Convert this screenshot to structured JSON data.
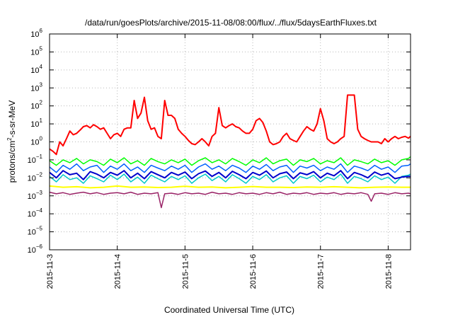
{
  "chart_data": {
    "type": "line",
    "title": "/data/run/goesPlots/archive/2015-11-08/08:00/flux/../flux/5daysEarthFluxes.txt",
    "xlabel": "Coordinated Universal Time (UTC)",
    "ylabel": "protons/cm²-s-sr-MeV",
    "ylabel_parts": {
      "before": "protons/cm",
      "sup": "2",
      "after": "-s-sr-MeV"
    },
    "yscale": "log",
    "ylim_exp": [
      -6,
      6
    ],
    "yticks_exp": [
      -6,
      -5,
      -4,
      -3,
      -2,
      -1,
      0,
      1,
      2,
      3,
      4,
      5,
      6
    ],
    "xlim": [
      0,
      5.33
    ],
    "xticks": [
      {
        "x": 0,
        "label": "2015-11-3"
      },
      {
        "x": 1,
        "label": "2015-11-4"
      },
      {
        "x": 2,
        "label": "2015-11-5"
      },
      {
        "x": 3,
        "label": "2015-11-6"
      },
      {
        "x": 4,
        "label": "2015-11-7"
      },
      {
        "x": 5,
        "label": "2015-11-8"
      }
    ],
    "grid": true,
    "series": [
      {
        "color": "#ff0000",
        "width": 2.0,
        "x": [
          0,
          0.05,
          0.1,
          0.15,
          0.2,
          0.25,
          0.3,
          0.35,
          0.4,
          0.45,
          0.5,
          0.55,
          0.6,
          0.65,
          0.7,
          0.75,
          0.8,
          0.85,
          0.9,
          0.95,
          1.0,
          1.05,
          1.1,
          1.15,
          1.2,
          1.25,
          1.3,
          1.35,
          1.4,
          1.45,
          1.5,
          1.55,
          1.6,
          1.65,
          1.7,
          1.75,
          1.8,
          1.85,
          1.9,
          1.95,
          2.0,
          2.05,
          2.1,
          2.15,
          2.2,
          2.25,
          2.3,
          2.35,
          2.4,
          2.45,
          2.5,
          2.55,
          2.6,
          2.65,
          2.7,
          2.75,
          2.8,
          2.85,
          2.9,
          2.95,
          3.0,
          3.05,
          3.1,
          3.15,
          3.2,
          3.25,
          3.3,
          3.35,
          3.4,
          3.45,
          3.5,
          3.55,
          3.6,
          3.65,
          3.7,
          3.75,
          3.8,
          3.85,
          3.9,
          3.95,
          4.0,
          4.05,
          4.1,
          4.15,
          4.2,
          4.25,
          4.3,
          4.35,
          4.4,
          4.45,
          4.5,
          4.55,
          4.6,
          4.65,
          4.7,
          4.75,
          4.8,
          4.85,
          4.9,
          4.95,
          5.0,
          5.05,
          5.1,
          5.15,
          5.2,
          5.25,
          5.3,
          5.33
        ],
        "y": [
          0.4,
          0.3,
          0.2,
          1.0,
          0.6,
          1.5,
          4.0,
          2.5,
          3.0,
          4.5,
          7.0,
          8.0,
          6.0,
          9.0,
          7.0,
          5.0,
          6.0,
          3.0,
          1.5,
          2.5,
          3.0,
          2.0,
          5.0,
          6.0,
          6.0,
          200,
          20,
          40,
          300,
          15,
          5,
          6,
          2,
          1.5,
          200,
          30,
          30,
          20,
          5,
          3,
          2,
          1.2,
          0.8,
          0.7,
          1.0,
          1.5,
          1.0,
          0.6,
          2.0,
          3.0,
          80,
          8,
          6,
          8,
          10,
          7,
          6,
          4,
          3,
          3.0,
          5,
          15,
          20,
          12,
          4,
          1.0,
          0.7,
          0.8,
          1.0,
          2.0,
          3.0,
          1.5,
          1.2,
          1.0,
          2.0,
          4.0,
          7.0,
          5.0,
          4.0,
          10,
          70,
          15,
          1.5,
          1.0,
          0.8,
          1.0,
          1.5,
          2.0,
          400,
          400,
          400,
          5,
          2,
          1.5,
          1.2,
          1.0,
          1.0,
          1.0,
          0.8,
          1.5,
          1.0,
          1.5,
          2.0,
          1.5,
          1.8,
          2.0,
          1.6,
          2.0
        ]
      },
      {
        "color": "#00ff00",
        "width": 1.5,
        "x": [
          0,
          0.1,
          0.2,
          0.3,
          0.4,
          0.5,
          0.6,
          0.7,
          0.8,
          0.9,
          1.0,
          1.1,
          1.2,
          1.3,
          1.4,
          1.5,
          1.6,
          1.7,
          1.8,
          1.9,
          2.0,
          2.1,
          2.2,
          2.3,
          2.4,
          2.5,
          2.6,
          2.7,
          2.8,
          2.9,
          3.0,
          3.1,
          3.2,
          3.3,
          3.4,
          3.5,
          3.6,
          3.7,
          3.8,
          3.9,
          4.0,
          4.1,
          4.2,
          4.3,
          4.4,
          4.5,
          4.6,
          4.7,
          4.8,
          4.9,
          5.0,
          5.1,
          5.2,
          5.3,
          5.33
        ],
        "y": [
          0.09,
          0.05,
          0.1,
          0.07,
          0.12,
          0.06,
          0.1,
          0.08,
          0.05,
          0.11,
          0.07,
          0.13,
          0.06,
          0.09,
          0.05,
          0.12,
          0.08,
          0.06,
          0.1,
          0.07,
          0.11,
          0.05,
          0.09,
          0.13,
          0.07,
          0.1,
          0.06,
          0.12,
          0.08,
          0.05,
          0.1,
          0.07,
          0.13,
          0.06,
          0.09,
          0.11,
          0.05,
          0.1,
          0.08,
          0.12,
          0.06,
          0.09,
          0.07,
          0.13,
          0.05,
          0.1,
          0.08,
          0.06,
          0.11,
          0.07,
          0.09,
          0.05,
          0.1,
          0.12,
          0.15
        ]
      },
      {
        "color": "#0060ff",
        "width": 1.5,
        "x": [
          0,
          0.1,
          0.2,
          0.3,
          0.4,
          0.5,
          0.6,
          0.7,
          0.8,
          0.9,
          1.0,
          1.1,
          1.2,
          1.3,
          1.4,
          1.5,
          1.6,
          1.7,
          1.8,
          1.9,
          2.0,
          2.1,
          2.2,
          2.3,
          2.4,
          2.5,
          2.6,
          2.7,
          2.8,
          2.9,
          3.0,
          3.1,
          3.2,
          3.3,
          3.4,
          3.5,
          3.6,
          3.7,
          3.8,
          3.9,
          4.0,
          4.1,
          4.2,
          4.3,
          4.4,
          4.5,
          4.6,
          4.7,
          4.8,
          4.9,
          5.0,
          5.1,
          5.2,
          5.3,
          5.33
        ],
        "y": [
          0.04,
          0.02,
          0.05,
          0.03,
          0.06,
          0.025,
          0.04,
          0.05,
          0.02,
          0.045,
          0.03,
          0.06,
          0.025,
          0.04,
          0.02,
          0.05,
          0.035,
          0.025,
          0.045,
          0.03,
          0.05,
          0.02,
          0.04,
          0.06,
          0.03,
          0.045,
          0.025,
          0.05,
          0.035,
          0.02,
          0.045,
          0.03,
          0.055,
          0.025,
          0.04,
          0.05,
          0.02,
          0.045,
          0.035,
          0.05,
          0.025,
          0.04,
          0.03,
          0.06,
          0.02,
          0.045,
          0.035,
          0.025,
          0.05,
          0.03,
          0.04,
          0.02,
          0.045,
          0.05,
          0.06
        ]
      },
      {
        "color": "#00c8c8",
        "width": 1.5,
        "x": [
          0,
          0.1,
          0.2,
          0.3,
          0.4,
          0.5,
          0.6,
          0.7,
          0.8,
          0.9,
          1.0,
          1.1,
          1.2,
          1.3,
          1.4,
          1.5,
          1.6,
          1.7,
          1.8,
          1.9,
          2.0,
          2.1,
          2.2,
          2.3,
          2.4,
          2.5,
          2.6,
          2.7,
          2.8,
          2.9,
          3.0,
          3.1,
          3.2,
          3.3,
          3.4,
          3.5,
          3.6,
          3.7,
          3.8,
          3.9,
          4.0,
          4.1,
          4.2,
          4.3,
          4.4,
          4.5,
          4.6,
          4.7,
          4.8,
          4.9,
          5.0,
          5.1,
          5.2,
          5.3,
          5.33
        ],
        "y": [
          0.012,
          0.006,
          0.015,
          0.008,
          0.01,
          0.005,
          0.013,
          0.009,
          0.006,
          0.014,
          0.008,
          0.016,
          0.006,
          0.011,
          0.005,
          0.014,
          0.009,
          0.006,
          0.012,
          0.008,
          0.013,
          0.005,
          0.01,
          0.016,
          0.007,
          0.012,
          0.006,
          0.015,
          0.009,
          0.005,
          0.012,
          0.008,
          0.015,
          0.006,
          0.01,
          0.013,
          0.005,
          0.012,
          0.009,
          0.014,
          0.006,
          0.011,
          0.008,
          0.016,
          0.005,
          0.012,
          0.009,
          0.006,
          0.013,
          0.008,
          0.011,
          0.005,
          0.012,
          0.014,
          0.016
        ]
      },
      {
        "color": "#0000cc",
        "width": 2.0,
        "x": [
          0,
          0.1,
          0.2,
          0.3,
          0.4,
          0.5,
          0.6,
          0.7,
          0.8,
          0.9,
          1.0,
          1.1,
          1.2,
          1.3,
          1.4,
          1.5,
          1.6,
          1.7,
          1.8,
          1.9,
          2.0,
          2.1,
          2.2,
          2.3,
          2.4,
          2.5,
          2.6,
          2.7,
          2.8,
          2.9,
          3.0,
          3.1,
          3.2,
          3.3,
          3.4,
          3.5,
          3.6,
          3.7,
          3.8,
          3.9,
          4.0,
          4.1,
          4.2,
          4.3,
          4.4,
          4.5,
          4.6,
          4.7,
          4.8,
          4.9,
          5.0,
          5.1,
          5.2,
          5.3,
          5.33
        ],
        "y": [
          0.02,
          0.01,
          0.025,
          0.015,
          0.018,
          0.008,
          0.022,
          0.016,
          0.01,
          0.02,
          0.014,
          0.025,
          0.01,
          0.018,
          0.009,
          0.022,
          0.015,
          0.01,
          0.02,
          0.014,
          0.021,
          0.009,
          0.017,
          0.024,
          0.012,
          0.02,
          0.01,
          0.023,
          0.015,
          0.009,
          0.02,
          0.014,
          0.024,
          0.01,
          0.017,
          0.021,
          0.009,
          0.019,
          0.015,
          0.022,
          0.01,
          0.018,
          0.013,
          0.025,
          0.009,
          0.02,
          0.015,
          0.01,
          0.021,
          0.014,
          0.018,
          0.009,
          0.011,
          0.012,
          0.012
        ]
      },
      {
        "color": "#ffff00",
        "width": 2.0,
        "x": [
          0,
          0.2,
          0.4,
          0.6,
          0.8,
          1.0,
          1.2,
          1.4,
          1.6,
          1.8,
          2.0,
          2.2,
          2.4,
          2.6,
          2.8,
          3.0,
          3.2,
          3.4,
          3.6,
          3.8,
          4.0,
          4.2,
          4.4,
          4.6,
          4.8,
          5.0,
          5.2,
          5.33
        ],
        "y": [
          0.0035,
          0.003,
          0.0032,
          0.0028,
          0.003,
          0.0035,
          0.003,
          0.0031,
          0.0029,
          0.003,
          0.0034,
          0.003,
          0.0031,
          0.0028,
          0.003,
          0.0033,
          0.003,
          0.003,
          0.0029,
          0.0031,
          0.003,
          0.0032,
          0.003,
          0.0028,
          0.003,
          0.0031,
          0.003,
          0.003
        ]
      },
      {
        "color": "#992266",
        "width": 1.5,
        "x": [
          0,
          0.1,
          0.2,
          0.3,
          0.4,
          0.5,
          0.6,
          0.7,
          0.8,
          0.9,
          1.0,
          1.1,
          1.2,
          1.3,
          1.4,
          1.5,
          1.6,
          1.65,
          1.7,
          1.8,
          1.9,
          2.0,
          2.1,
          2.2,
          2.3,
          2.4,
          2.5,
          2.6,
          2.7,
          2.8,
          2.9,
          3.0,
          3.1,
          3.2,
          3.3,
          3.4,
          3.5,
          3.6,
          3.7,
          3.8,
          3.9,
          4.0,
          4.1,
          4.2,
          4.3,
          4.4,
          4.5,
          4.6,
          4.7,
          4.75,
          4.8,
          4.9,
          5.0,
          5.1,
          5.2,
          5.3,
          5.33
        ],
        "y": [
          0.0016,
          0.0013,
          0.0015,
          0.0012,
          0.0014,
          0.0016,
          0.0013,
          0.0015,
          0.0012,
          0.0014,
          0.0015,
          0.0013,
          0.0016,
          0.0012,
          0.0014,
          0.0013,
          0.0015,
          0.00022,
          0.0013,
          0.0014,
          0.0012,
          0.0015,
          0.0013,
          0.0014,
          0.0012,
          0.0016,
          0.0013,
          0.0014,
          0.0012,
          0.0015,
          0.0013,
          0.0014,
          0.0012,
          0.0015,
          0.0013,
          0.0016,
          0.0012,
          0.0014,
          0.0013,
          0.0015,
          0.0012,
          0.0014,
          0.0013,
          0.0015,
          0.0012,
          0.0014,
          0.0013,
          0.0015,
          0.0012,
          0.0005,
          0.0013,
          0.0014,
          0.0012,
          0.0015,
          0.0013,
          0.0014,
          0.0013
        ]
      }
    ]
  }
}
